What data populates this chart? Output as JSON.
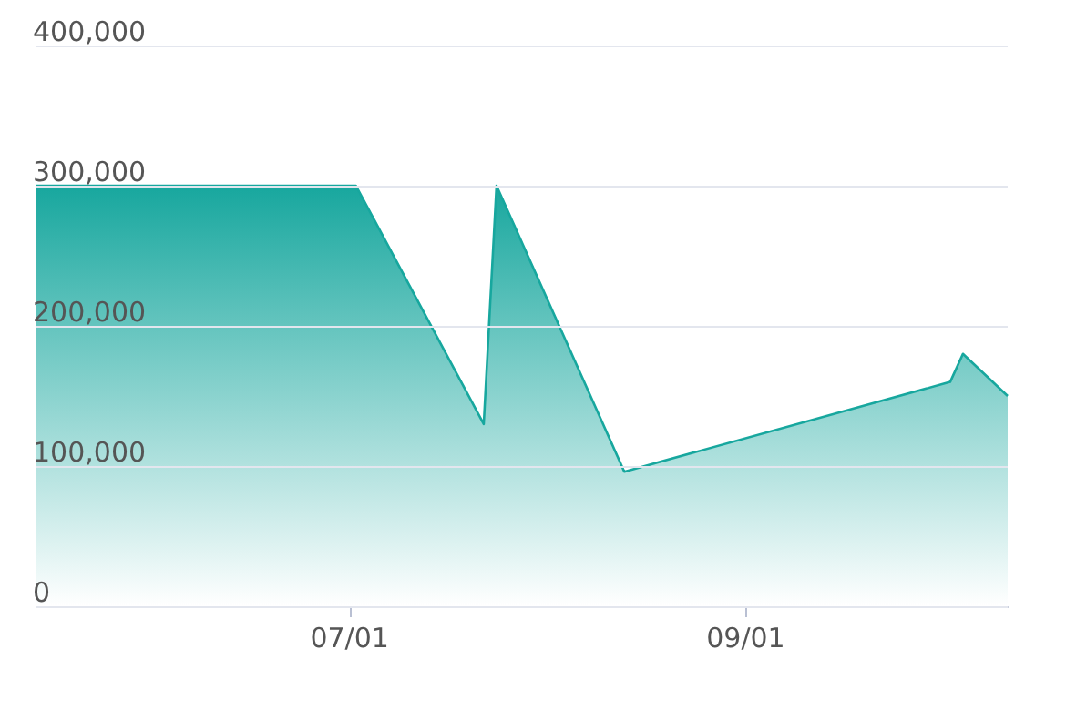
{
  "chart_data": {
    "type": "area",
    "x": [
      "--05-13",
      "--07-02",
      "--07-22",
      "--07-24",
      "--08-13",
      "--10-03",
      "--10-05",
      "--10-12"
    ],
    "series": [
      {
        "color": "#17a79e",
        "values": [
          300000,
          300000,
          130000,
          300000,
          96000,
          160000,
          180000,
          150000
        ]
      }
    ],
    "xlim": [
      "--05-13",
      "--10-12"
    ],
    "xticks": [
      {
        "value": "--07-01",
        "label": "07/01"
      },
      {
        "value": "--09-01",
        "label": "09/01"
      }
    ],
    "ylim": [
      0,
      400000
    ],
    "yticks": [
      {
        "value": 0,
        "label": "0"
      },
      {
        "value": 100000,
        "label": "100,000"
      },
      {
        "value": 200000,
        "label": "200,000"
      },
      {
        "value": 300000,
        "label": "300,000"
      },
      {
        "value": 400000,
        "label": "400,000"
      }
    ],
    "grid": "y",
    "marker": "none",
    "line_style": "solid"
  }
}
